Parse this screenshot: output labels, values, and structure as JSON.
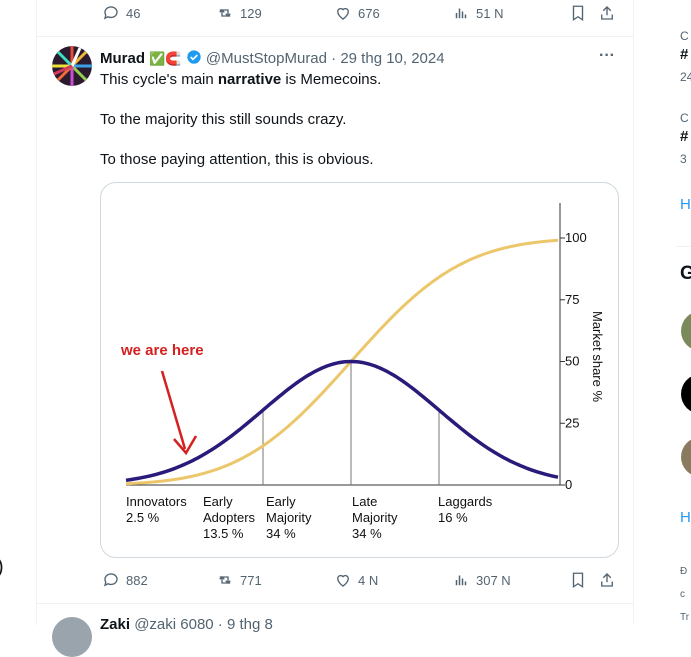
{
  "top_actions": {
    "replies": "46",
    "reposts": "129",
    "likes": "676",
    "views": "51 N"
  },
  "tweet": {
    "author_name": "Murad",
    "author_emojis": "✅🧲",
    "handle_date": "@MustStopMurad · 29 thg 10, 2024",
    "line1_before": "This cycle's main ",
    "line1_bold": "narrative",
    "line1_after": " is Memecoins.",
    "line2": "To the majority this still sounds crazy.",
    "line3": "To those paying attention, this is obvious.",
    "more": "···",
    "actions": {
      "replies": "882",
      "reposts": "771",
      "likes": "4 N",
      "views": "307 N"
    }
  },
  "next_tweet": {
    "author_name": "Zaki",
    "handle_date": "@zaki 6080 · 9 thg 8"
  },
  "chart_data": {
    "type": "line",
    "annotation": "we are here",
    "y_right_label": "Market share %",
    "y_ticks": [
      "0",
      "25",
      "50",
      "75",
      "100"
    ],
    "ylim": [
      0,
      100
    ],
    "segments": [
      {
        "name": "Innovators",
        "pct": "2.5 %"
      },
      {
        "name": "Early Adopters",
        "line1": "Early",
        "line2": "Adopters",
        "pct": "13.5 %"
      },
      {
        "name": "Early Majority",
        "line1": "Early",
        "line2": "Majority",
        "pct": "34 %"
      },
      {
        "name": "Late Majority",
        "line1": "Late",
        "line2": "Majority",
        "pct": "34 %"
      },
      {
        "name": "Laggards",
        "pct": "16 %"
      }
    ],
    "series": [
      {
        "name": "Adoption",
        "color": "#2a1a7a"
      },
      {
        "name": "Market share",
        "color": "#ecc66a"
      }
    ],
    "adoption_peak_share": 50
  },
  "right_sidebar": {
    "frag1_small": "C",
    "frag1_bold": "#",
    "frag1_count": "24",
    "frag2_small": "C",
    "frag2_bold": "#",
    "frag2_count": "3",
    "show_more_1": "H",
    "heading": "G",
    "show_more_2": "H",
    "footer1": "Đ",
    "footer2": "c",
    "footer3": "Tr"
  },
  "left_fragment": ")"
}
